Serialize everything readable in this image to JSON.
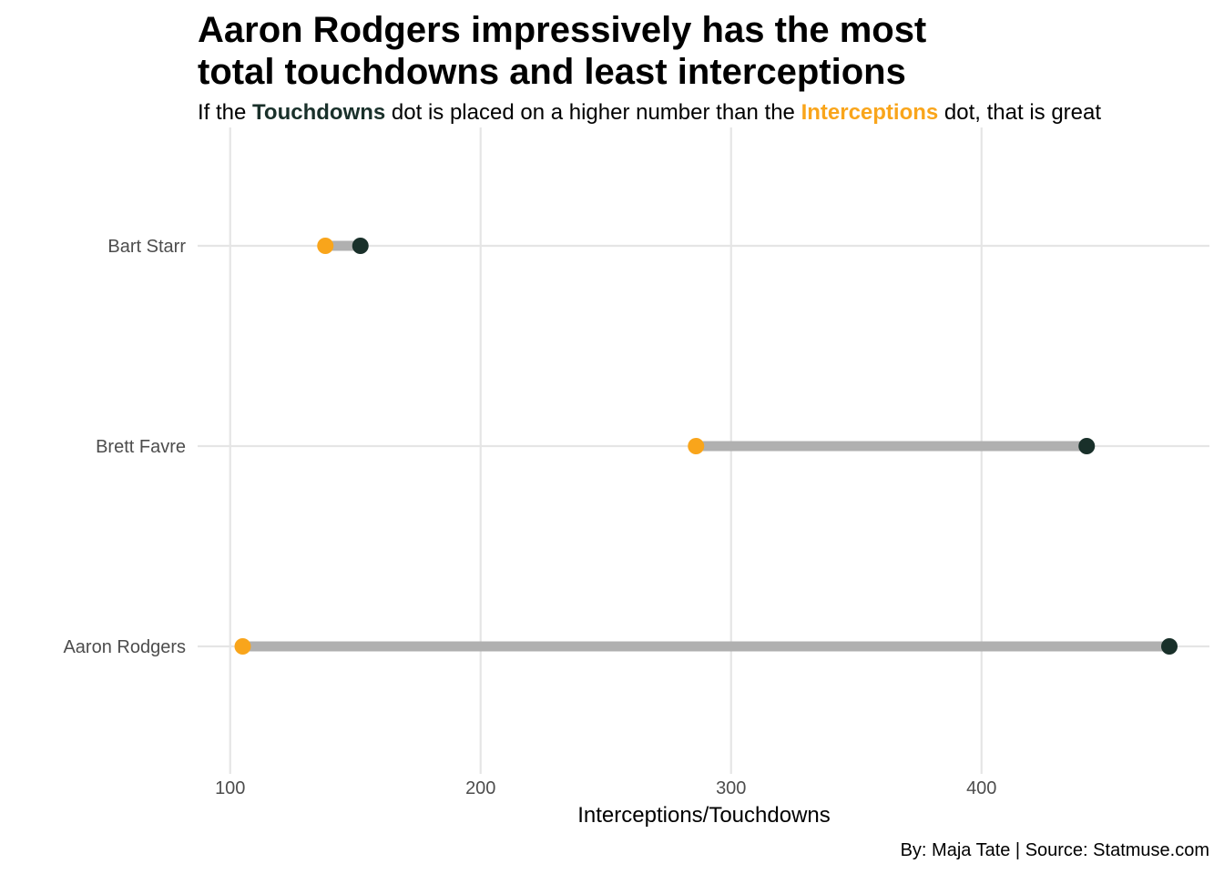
{
  "chart_title": {
    "line1": "Aaron Rodgers impressively has the most",
    "line2": "total touchdowns and least interceptions"
  },
  "subtitle": {
    "part1": "If the ",
    "touchdowns_word": "Touchdowns",
    "part2": " dot is placed on a higher number than the ",
    "interceptions_word": "Interceptions",
    "part3": " dot, that is great"
  },
  "caption": "By: Maja Tate | Source: Statmuse.com",
  "colors": {
    "touchdowns": "#19302a",
    "interceptions": "#f9a51b",
    "segment": "#b0b0b0",
    "grid": "#e5e5e5"
  },
  "chart_data": {
    "type": "dumbbell",
    "xlabel": "Interceptions/Touchdowns",
    "ylabel": "",
    "xlim": [
      87,
      491
    ],
    "x_ticks": [
      100,
      200,
      300,
      400
    ],
    "grid": true,
    "categories": [
      "Aaron Rodgers",
      "Brett Favre",
      "Bart Starr"
    ],
    "series": [
      {
        "name": "Interceptions",
        "values": [
          105,
          286,
          138
        ]
      },
      {
        "name": "Touchdowns",
        "values": [
          475,
          442,
          152
        ]
      }
    ]
  }
}
